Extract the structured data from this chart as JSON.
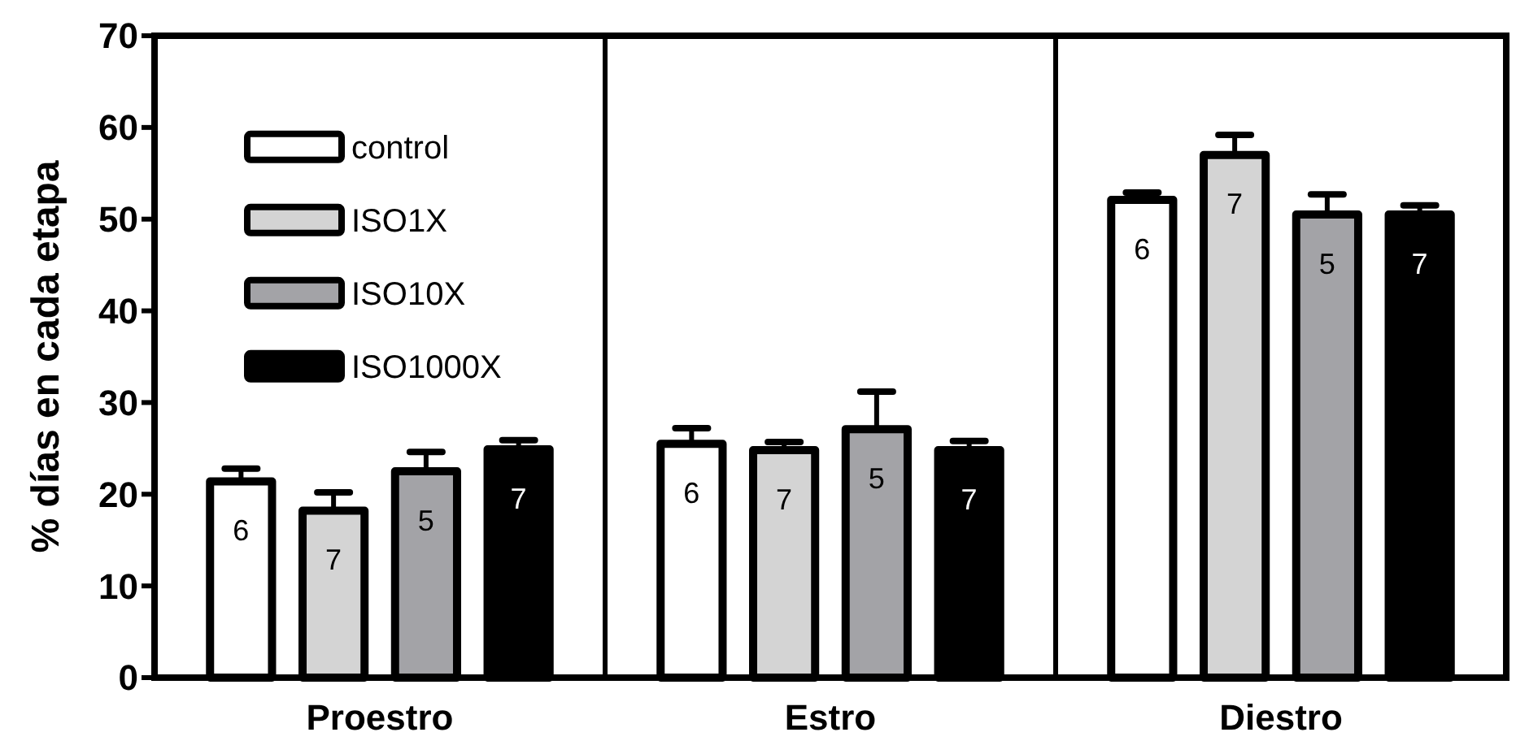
{
  "chart_data": {
    "type": "bar",
    "ylabel": "% días en cada etapa",
    "categories": [
      "Proestro",
      "Estro",
      "Diestro"
    ],
    "ylim": [
      0,
      70
    ],
    "yticks": [
      0,
      10,
      20,
      30,
      40,
      50,
      60,
      70
    ],
    "grid": false,
    "legend": "top left",
    "series": [
      {
        "name": "control",
        "color": "#ffffff",
        "values": [
          21.4,
          25.5,
          52.1
        ],
        "errors": [
          [
            21.4,
            22.8
          ],
          [
            25.5,
            27.2
          ],
          [
            52.1,
            52.9
          ]
        ]
      },
      {
        "name": "ISO1X",
        "color": "#d4d4d4",
        "values": [
          18.2,
          24.8,
          57.0
        ],
        "errors": [
          [
            18.2,
            20.2
          ],
          [
            24.8,
            25.7
          ],
          [
            57.0,
            59.2
          ]
        ]
      },
      {
        "name": "ISO10X",
        "color": "#a3a3a7",
        "values": [
          22.5,
          27.1,
          50.5
        ],
        "errors": [
          [
            22.5,
            24.6
          ],
          [
            27.1,
            31.2
          ],
          [
            50.5,
            52.7
          ]
        ]
      },
      {
        "name": "ISO1000X",
        "color": "#000000",
        "values": [
          24.9,
          24.8,
          50.5
        ],
        "errors": [
          [
            24.9,
            25.9
          ],
          [
            24.8,
            25.8
          ],
          [
            50.5,
            51.5
          ]
        ]
      }
    ],
    "annotations": [
      "6",
      "7",
      "5",
      "7",
      "6",
      "7",
      "5",
      "7",
      "6",
      "7",
      "5",
      "7"
    ]
  }
}
